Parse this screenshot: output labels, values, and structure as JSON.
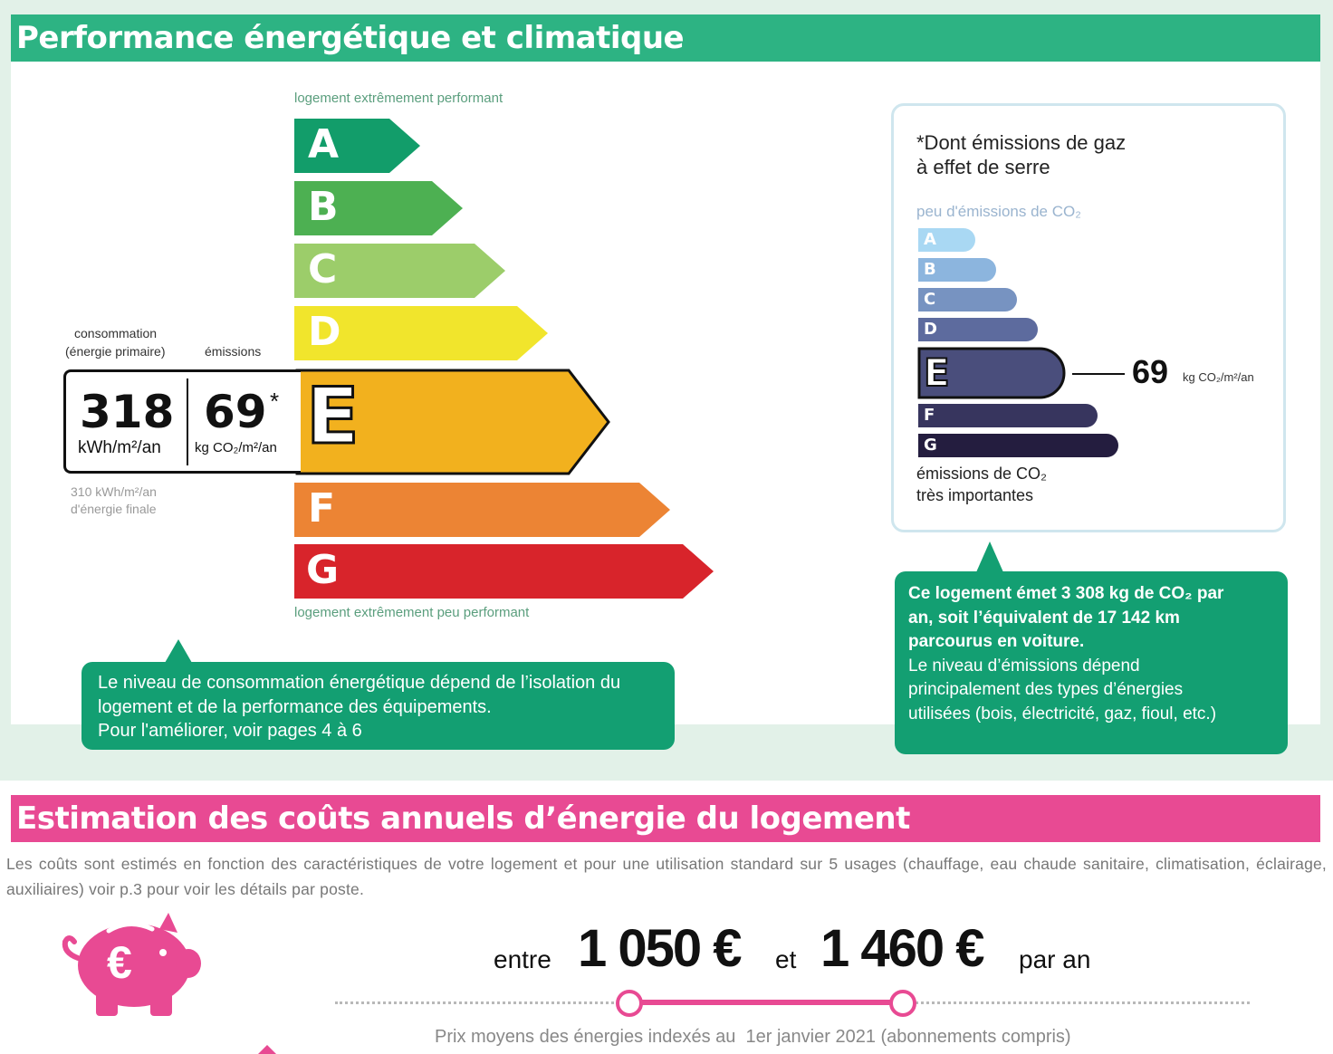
{
  "section1": {
    "title": "Performance énergétique et climatique",
    "title_color": "#2db383",
    "top_label": "logement extrêmement performant",
    "bottom_label": "logement extrêmement peu performant",
    "classes": [
      {
        "letter": "A",
        "color": "#129d6a"
      },
      {
        "letter": "B",
        "color": "#4db052"
      },
      {
        "letter": "C",
        "color": "#9ccd6a"
      },
      {
        "letter": "D",
        "color": "#f1e52c"
      },
      {
        "letter": "E",
        "color": "#f2b11e"
      },
      {
        "letter": "F",
        "color": "#ec8434"
      },
      {
        "letter": "G",
        "color": "#d8242b"
      }
    ],
    "current_class": "E",
    "consumption_label_1": "consommation",
    "consumption_label_2": "(énergie primaire)",
    "emissions_label": "émissions",
    "consumption_value": "318",
    "consumption_unit": "kWh/m²/an",
    "emissions_value": "69",
    "emissions_star": "*",
    "emissions_unit": "kg CO₂/m²/an",
    "final_energy_1": "310 kWh/m²/an",
    "final_energy_2": "d'énergie finale",
    "bubble_lines": [
      "Le niveau de consommation énergétique dépend de l’isolation du",
      "logement et de la performance des équipements.",
      "Pour l'améliorer, voir pages 4 à 6"
    ]
  },
  "ghg": {
    "title_line1": "*Dont émissions de gaz",
    "title_line2": "à effet de serre",
    "top_label": "peu d'émissions de CO₂",
    "bottom_label_1": "émissions de CO₂",
    "bottom_label_2": "très importantes",
    "classes": [
      {
        "letter": "A",
        "color": "#a9d8f3"
      },
      {
        "letter": "B",
        "color": "#8cb5de"
      },
      {
        "letter": "C",
        "color": "#7793c1"
      },
      {
        "letter": "D",
        "color": "#5d6b9e"
      },
      {
        "letter": "E",
        "color": "#4a4e7c"
      },
      {
        "letter": "F",
        "color": "#37355e"
      },
      {
        "letter": "G",
        "color": "#241d3f"
      }
    ],
    "current_class": "E",
    "value": "69",
    "unit": "kg CO₂/m²/an",
    "bubble_bold_lines": [
      "Ce logement émet 3 308 kg de CO₂ par",
      "an, soit l’équivalent de 17 142 km",
      "parcourus en voiture."
    ],
    "bubble_lines": [
      "Le niveau d’émissions dépend",
      "principalement des types d’énergies",
      "utilisées (bois, électricité, gaz, fioul, etc.)"
    ]
  },
  "section2": {
    "title": "Estimation des coûts annuels d’énergie du logement",
    "title_color": "#e84a93",
    "description": "Les coûts sont estimés en fonction des caractéristiques de votre logement et pour une utilisation standard sur 5 usages (chauffage, eau chaude sanitaire, climatisation, éclairage, auxiliaires) voir p.3 pour voir les détails par poste.",
    "word_between": "entre",
    "low": "1 050 €",
    "word_and": "et",
    "high": "1 460 €",
    "per_year": "par an",
    "footnote": "Prix moyens des énergies indexés au  1er janvier 2021 (abonnements compris)",
    "piggy_symbol": "€",
    "icon": "piggy-bank-icon"
  }
}
